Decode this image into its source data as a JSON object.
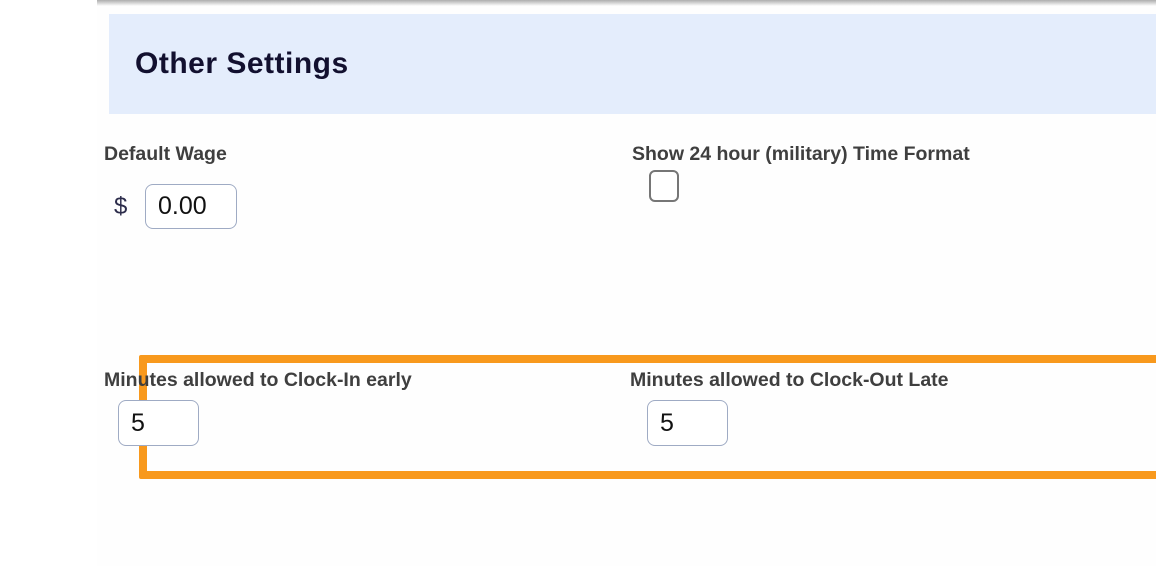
{
  "header": {
    "title": "Other Settings",
    "background": "#E4EDFC",
    "text_color": "#12102F"
  },
  "colors": {
    "highlight_orange": "#F8991D",
    "label_text": "#3F3F3F",
    "input_border": "#9FABC4"
  },
  "fields": {
    "default_wage": {
      "label": "Default Wage",
      "currency_symbol": "$",
      "value": "0.00"
    },
    "military_time": {
      "label": "Show 24 hour (military) Time Format",
      "checked": false
    },
    "clock_in_early": {
      "label": "Minutes allowed to Clock-In early",
      "value": "5"
    },
    "clock_out_late": {
      "label": "Minutes allowed to Clock-Out Late",
      "value": "5"
    }
  }
}
